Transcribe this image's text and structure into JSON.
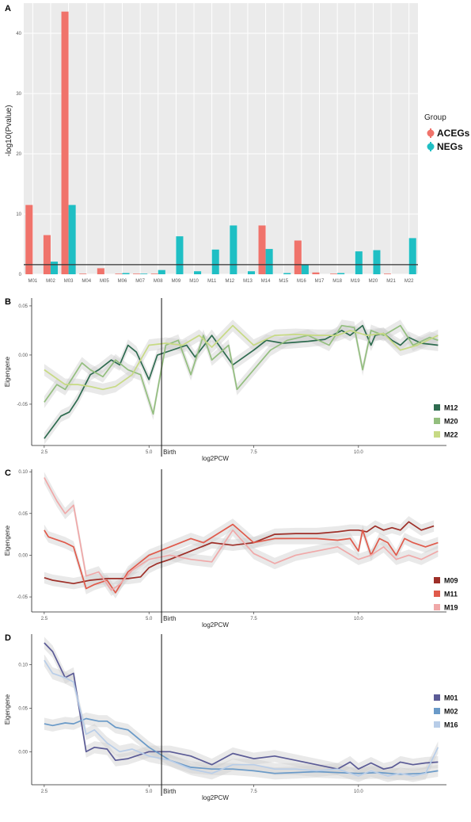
{
  "chart_data": [
    {
      "panel": "A",
      "type": "bar",
      "ylabel": "-log10(Pvalue)",
      "ylim": [
        0,
        45
      ],
      "yticks": [
        0,
        10,
        20,
        30,
        40
      ],
      "categories": [
        "M01",
        "M02",
        "M03",
        "M04",
        "M05",
        "M06",
        "M07",
        "M08",
        "M09",
        "M10",
        "M11",
        "M12",
        "M13",
        "M14",
        "M15",
        "M16",
        "M17",
        "M18",
        "M19",
        "M20",
        "M21",
        "M22"
      ],
      "series": [
        {
          "name": "ACEGs",
          "color": "#F0736B",
          "values": [
            11.5,
            6.5,
            43.6,
            0.1,
            1.0,
            0.1,
            0.1,
            0.1,
            0.0,
            0.0,
            0.0,
            0.0,
            0.0,
            8.1,
            0.0,
            5.6,
            0.3,
            0.1,
            0.0,
            0.0,
            0.1,
            0.0
          ]
        },
        {
          "name": "NEGs",
          "color": "#1FBFC4",
          "values": [
            0.0,
            2.1,
            11.5,
            0.0,
            0.0,
            0.2,
            0.1,
            0.7,
            6.3,
            0.5,
            4.1,
            8.1,
            0.5,
            4.2,
            0.2,
            1.6,
            0.0,
            0.2,
            3.8,
            4.0,
            0.0,
            6.0
          ]
        }
      ],
      "threshold": 1.6,
      "legend": {
        "title": "Group",
        "position": "right"
      }
    },
    {
      "panel": "B",
      "type": "line",
      "xlabel": "log2PCW",
      "ylabel": "Eigengene",
      "xlim": [
        2.2,
        12.1
      ],
      "ylim": [
        -0.092,
        0.058
      ],
      "xticks": [
        2.5,
        5.0,
        7.5,
        10.0
      ],
      "yticks": [
        -0.05,
        0.0,
        0.05
      ],
      "ytick_labels": [
        "-0.05",
        "0.00",
        "0.05"
      ],
      "birth": {
        "x": 5.3,
        "label": "Birth"
      },
      "series": [
        {
          "name": "M12",
          "color": "#2E6B4F",
          "x": [
            2.5,
            2.9,
            3.1,
            3.3,
            3.6,
            3.8,
            4.1,
            4.3,
            4.5,
            4.7,
            5.0,
            5.2,
            5.9,
            6.1,
            6.5,
            7.0,
            7.5,
            7.8,
            8.2,
            8.8,
            9.2,
            9.6,
            9.8,
            10.1,
            10.3,
            10.4,
            10.6,
            10.8,
            11.0,
            11.2,
            11.5,
            11.9
          ],
          "y": [
            -0.085,
            -0.062,
            -0.058,
            -0.045,
            -0.02,
            -0.015,
            -0.005,
            -0.01,
            0.01,
            0.003,
            -0.025,
            0.0,
            0.01,
            -0.002,
            0.02,
            -0.01,
            0.005,
            0.015,
            0.012,
            0.014,
            0.016,
            0.025,
            0.02,
            0.03,
            0.01,
            0.02,
            0.022,
            0.015,
            0.01,
            0.018,
            0.012,
            0.01
          ]
        },
        {
          "name": "M20",
          "color": "#93BE7E",
          "x": [
            2.5,
            2.8,
            3.0,
            3.4,
            3.6,
            3.9,
            4.2,
            4.5,
            4.8,
            5.1,
            5.4,
            5.7,
            6.0,
            6.3,
            6.5,
            6.9,
            7.1,
            7.5,
            7.9,
            8.3,
            8.8,
            9.3,
            9.6,
            9.9,
            10.1,
            10.3,
            10.6,
            11.0,
            11.3,
            11.7,
            11.9
          ],
          "y": [
            -0.048,
            -0.03,
            -0.035,
            -0.008,
            -0.015,
            -0.022,
            -0.005,
            -0.015,
            -0.02,
            -0.06,
            0.01,
            0.015,
            -0.02,
            0.02,
            -0.005,
            0.01,
            -0.035,
            -0.015,
            0.005,
            0.015,
            0.02,
            0.01,
            0.03,
            0.028,
            -0.015,
            0.025,
            0.02,
            0.03,
            0.01,
            0.018,
            0.015
          ]
        },
        {
          "name": "M22",
          "color": "#C7DA84",
          "x": [
            2.5,
            3.0,
            3.3,
            3.6,
            3.9,
            4.2,
            4.6,
            5.0,
            5.4,
            5.8,
            6.2,
            6.5,
            7.0,
            7.5,
            8.0,
            8.5,
            9.0,
            9.5,
            9.8,
            10.2,
            10.6,
            11.0,
            11.4,
            11.9
          ],
          "y": [
            -0.015,
            -0.03,
            -0.03,
            -0.032,
            -0.035,
            -0.032,
            -0.02,
            0.01,
            0.012,
            0.01,
            0.02,
            0.008,
            0.03,
            0.01,
            0.02,
            0.021,
            0.02,
            0.02,
            0.025,
            0.02,
            0.022,
            0.005,
            0.01,
            0.02
          ]
        }
      ],
      "legend": {
        "position": "right"
      }
    },
    {
      "panel": "C",
      "type": "line",
      "xlabel": "log2PCW",
      "ylabel": "Eigengene",
      "xlim": [
        2.2,
        12.1
      ],
      "ylim": [
        -0.068,
        0.103
      ],
      "xticks": [
        2.5,
        5.0,
        7.5,
        10.0
      ],
      "yticks": [
        -0.05,
        0.0,
        0.05,
        0.1
      ],
      "ytick_labels": [
        "-0.05",
        "0.00",
        "0.05",
        "0.10"
      ],
      "birth": {
        "x": 5.3,
        "label": "Birth"
      },
      "series": [
        {
          "name": "M09",
          "color": "#9E2F28",
          "x": [
            2.5,
            2.7,
            3.2,
            3.6,
            4.0,
            4.5,
            4.8,
            5.0,
            5.2,
            5.5,
            6.0,
            6.5,
            7.0,
            7.5,
            8.0,
            8.5,
            9.0,
            9.5,
            9.8,
            10.0,
            10.2,
            10.4,
            10.6,
            10.8,
            11.0,
            11.2,
            11.5,
            11.8
          ],
          "y": [
            -0.027,
            -0.03,
            -0.034,
            -0.03,
            -0.028,
            -0.028,
            -0.026,
            -0.015,
            -0.01,
            -0.005,
            0.005,
            0.015,
            0.012,
            0.015,
            0.025,
            0.026,
            0.026,
            0.028,
            0.03,
            0.03,
            0.028,
            0.035,
            0.03,
            0.033,
            0.03,
            0.04,
            0.03,
            0.035
          ]
        },
        {
          "name": "M11",
          "color": "#E05A4B",
          "x": [
            2.5,
            2.6,
            3.0,
            3.2,
            3.5,
            3.7,
            4.0,
            4.2,
            4.5,
            5.0,
            5.5,
            6.0,
            6.3,
            7.0,
            7.5,
            8.0,
            8.5,
            9.0,
            9.5,
            9.8,
            10.0,
            10.1,
            10.3,
            10.5,
            10.7,
            10.9,
            11.1,
            11.3,
            11.6,
            11.9
          ],
          "y": [
            0.03,
            0.022,
            0.015,
            0.01,
            -0.04,
            -0.035,
            -0.03,
            -0.045,
            -0.02,
            0.0,
            0.01,
            0.02,
            0.015,
            0.037,
            0.015,
            0.02,
            0.02,
            0.02,
            0.018,
            0.02,
            0.005,
            0.03,
            0.0,
            0.02,
            0.015,
            0.0,
            0.02,
            0.015,
            0.01,
            0.015
          ]
        },
        {
          "name": "M19",
          "color": "#F0A8A8",
          "x": [
            2.5,
            2.8,
            3.0,
            3.2,
            3.5,
            3.8,
            4.1,
            4.3,
            4.6,
            5.0,
            5.5,
            6.0,
            6.5,
            7.0,
            7.5,
            8.0,
            8.5,
            9.0,
            9.5,
            10.0,
            10.3,
            10.6,
            10.9,
            11.2,
            11.5,
            11.9
          ],
          "y": [
            0.093,
            0.065,
            0.05,
            0.06,
            -0.025,
            -0.02,
            -0.042,
            -0.035,
            -0.018,
            -0.005,
            0.0,
            -0.005,
            -0.008,
            0.03,
            0.002,
            -0.01,
            0.0,
            0.005,
            0.01,
            -0.005,
            0.0,
            0.01,
            -0.005,
            0.0,
            -0.005,
            0.005
          ]
        }
      ],
      "legend": {
        "position": "right"
      }
    },
    {
      "panel": "D",
      "type": "line",
      "xlabel": "log2PCW",
      "ylabel": "Eigengene",
      "xlim": [
        2.2,
        12.1
      ],
      "ylim": [
        -0.038,
        0.135
      ],
      "xticks": [
        2.5,
        5.0,
        7.5,
        10.0
      ],
      "yticks": [
        0.0,
        0.05,
        0.1
      ],
      "ytick_labels": [
        "0.00",
        "0.05",
        "0.10"
      ],
      "birth": {
        "x": 5.3,
        "label": "Birth"
      },
      "series": [
        {
          "name": "M01",
          "color": "#5B5B96",
          "x": [
            2.5,
            2.7,
            3.0,
            3.2,
            3.5,
            3.7,
            4.0,
            4.2,
            4.5,
            5.0,
            5.5,
            6.0,
            6.5,
            7.0,
            7.5,
            8.0,
            8.5,
            9.0,
            9.5,
            9.8,
            10.0,
            10.3,
            10.6,
            10.8,
            11.0,
            11.3,
            11.6,
            11.9
          ],
          "y": [
            0.125,
            0.115,
            0.085,
            0.09,
            0.0,
            0.005,
            0.003,
            -0.01,
            -0.008,
            0.0,
            0.0,
            -0.005,
            -0.015,
            -0.002,
            -0.008,
            -0.005,
            -0.01,
            -0.015,
            -0.02,
            -0.012,
            -0.02,
            -0.013,
            -0.02,
            -0.018,
            -0.012,
            -0.015,
            -0.013,
            -0.012
          ]
        },
        {
          "name": "M02",
          "color": "#6A9AC8",
          "x": [
            2.5,
            2.7,
            3.0,
            3.2,
            3.5,
            3.8,
            4.0,
            4.2,
            4.5,
            5.0,
            5.5,
            6.0,
            6.5,
            7.0,
            7.5,
            8.0,
            8.5,
            9.0,
            9.5,
            10.0,
            10.5,
            11.0,
            11.5,
            11.9
          ],
          "y": [
            0.032,
            0.03,
            0.033,
            0.032,
            0.038,
            0.035,
            0.035,
            0.028,
            0.025,
            0.005,
            -0.01,
            -0.018,
            -0.02,
            -0.02,
            -0.022,
            -0.025,
            -0.024,
            -0.023,
            -0.024,
            -0.025,
            -0.024,
            -0.026,
            -0.025,
            -0.022
          ]
        },
        {
          "name": "M16",
          "color": "#B8CDE8",
          "x": [
            2.5,
            2.7,
            3.0,
            3.2,
            3.5,
            3.7,
            4.0,
            4.3,
            4.6,
            5.0,
            5.5,
            6.0,
            6.5,
            7.0,
            7.5,
            8.0,
            8.5,
            9.0,
            9.5,
            10.0,
            10.3,
            10.7,
            11.0,
            11.3,
            11.6,
            11.9
          ],
          "y": [
            0.105,
            0.09,
            0.085,
            0.08,
            0.02,
            0.025,
            0.01,
            0.0,
            0.003,
            -0.005,
            -0.01,
            -0.02,
            -0.025,
            -0.015,
            -0.015,
            -0.02,
            -0.02,
            -0.022,
            -0.02,
            -0.028,
            -0.022,
            -0.028,
            -0.025,
            -0.028,
            -0.025,
            0.005
          ]
        }
      ],
      "legend": {
        "position": "right"
      }
    }
  ]
}
